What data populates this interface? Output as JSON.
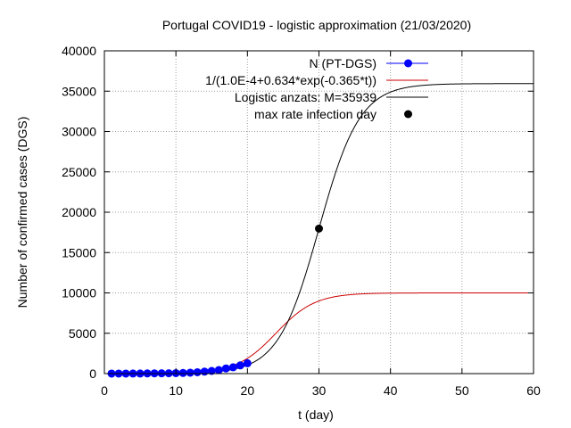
{
  "chart_data": {
    "type": "line",
    "title": "Portugal COVID19 - logistic approximation (21/03/2020)",
    "xlabel": "t (day)",
    "ylabel": "Number of confirmed cases (DGS)",
    "xlim": [
      0,
      60
    ],
    "ylim": [
      0,
      40000
    ],
    "xticks": [
      0,
      10,
      20,
      30,
      40,
      50,
      60
    ],
    "yticks": [
      0,
      5000,
      10000,
      15000,
      20000,
      25000,
      30000,
      35000,
      40000
    ],
    "grid": true,
    "legend_position": "top-right",
    "series": [
      {
        "name": "N (PT-DGS)",
        "kind": "points-with-line",
        "color": "#0000ff",
        "x": [
          1,
          2,
          3,
          4,
          5,
          6,
          7,
          8,
          9,
          10,
          11,
          12,
          13,
          14,
          15,
          16,
          17,
          18,
          19,
          20
        ],
        "y": [
          2,
          4,
          6,
          9,
          13,
          21,
          30,
          39,
          41,
          59,
          78,
          112,
          169,
          245,
          331,
          448,
          642,
          785,
          1020,
          1280
        ]
      },
      {
        "name": "1/(1.0E-4+0.634*exp(-0.365*t))",
        "kind": "function",
        "color": "#cc0000",
        "formula": {
          "a": 0.0001,
          "b": 0.634,
          "k": 0.365
        },
        "x_range": [
          0,
          60
        ]
      },
      {
        "name": "Logistic anzats: M=35939",
        "kind": "function",
        "color": "#000000",
        "formula": {
          "M": 35939,
          "t0": 30,
          "k": 0.35
        },
        "x_range": [
          0,
          60
        ]
      },
      {
        "name": "max rate infection day",
        "kind": "point",
        "color": "#000000",
        "x": [
          30
        ],
        "y": [
          17970
        ]
      }
    ]
  }
}
